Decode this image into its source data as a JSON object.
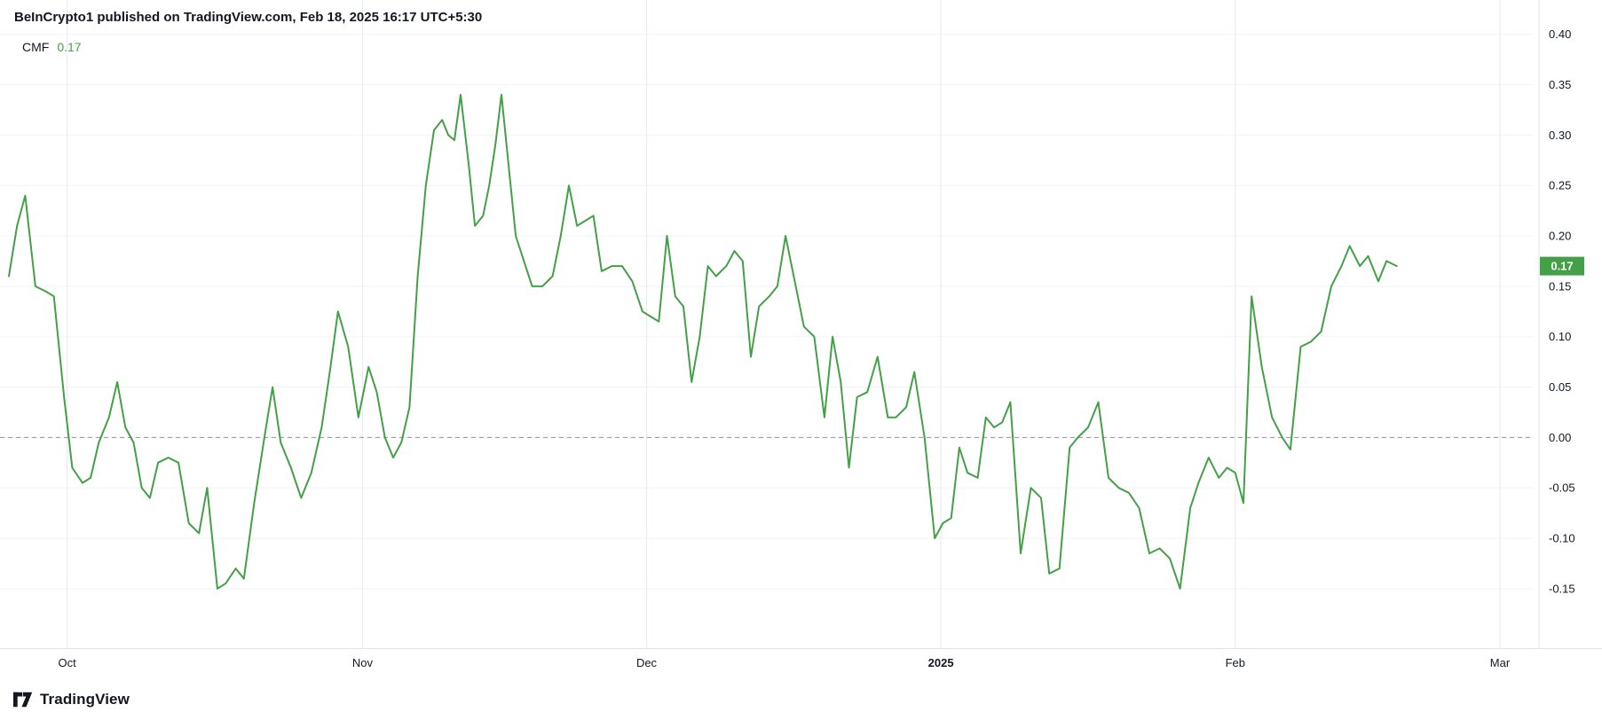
{
  "header": {
    "attribution": "BeInCrypto1 published on TradingView.com, Feb 18, 2025 16:17 UTC+5:30",
    "indicator": {
      "label": "CMF",
      "value": "0.17"
    }
  },
  "footer": {
    "brand": "TradingView"
  },
  "colors": {
    "background": "#ffffff",
    "line": "#43a047",
    "value_text": "#43a047",
    "badge_bg": "#43a047",
    "badge_text": "#ffffff",
    "grid_vertical": "#e8eaf0",
    "grid_horizontal": "#f1f3f8",
    "zero_line": "#8f939e",
    "axis_border": "#e0e3eb",
    "axis_text": "#131722",
    "header_text": "#131722"
  },
  "chart_data": {
    "type": "line",
    "title": "CMF (Chaikin Money Flow)",
    "series_name": "CMF",
    "current_value": 0.17,
    "legend_position": "top-left",
    "grid": true,
    "x_domain": [
      0,
      1492
    ],
    "ylim": [
      -0.209,
      0.434
    ],
    "y_ticks": [
      0.4,
      0.35,
      0.3,
      0.25,
      0.2,
      0.15,
      0.1,
      0.05,
      0.0,
      -0.05,
      -0.1,
      -0.15
    ],
    "y_tick_labels": [
      "0.40",
      "0.35",
      "0.30",
      "0.25",
      "0.20",
      "0.15",
      "0.10",
      "0.05",
      "0.00",
      "-0.05",
      "-0.10",
      "-0.15"
    ],
    "x_ticks": [
      {
        "label": "Oct",
        "x": 57,
        "bold": false
      },
      {
        "label": "Nov",
        "x": 346,
        "bold": false
      },
      {
        "label": "Dec",
        "x": 624,
        "bold": false
      },
      {
        "label": "2025",
        "x": 912,
        "bold": true
      },
      {
        "label": "Feb",
        "x": 1200,
        "bold": false
      },
      {
        "label": "Mar",
        "x": 1459,
        "bold": false
      }
    ],
    "points": [
      [
        0,
        0.16
      ],
      [
        8,
        0.21
      ],
      [
        16,
        0.24
      ],
      [
        26,
        0.15
      ],
      [
        36,
        0.145
      ],
      [
        44,
        0.14
      ],
      [
        54,
        0.04
      ],
      [
        62,
        -0.03
      ],
      [
        72,
        -0.045
      ],
      [
        80,
        -0.04
      ],
      [
        88,
        -0.005
      ],
      [
        98,
        0.02
      ],
      [
        106,
        0.055
      ],
      [
        114,
        0.01
      ],
      [
        122,
        -0.005
      ],
      [
        130,
        -0.05
      ],
      [
        138,
        -0.06
      ],
      [
        146,
        -0.025
      ],
      [
        156,
        -0.02
      ],
      [
        166,
        -0.025
      ],
      [
        176,
        -0.085
      ],
      [
        186,
        -0.095
      ],
      [
        194,
        -0.05
      ],
      [
        204,
        -0.15
      ],
      [
        212,
        -0.145
      ],
      [
        222,
        -0.13
      ],
      [
        230,
        -0.14
      ],
      [
        240,
        -0.065
      ],
      [
        250,
        0.0
      ],
      [
        258,
        0.05
      ],
      [
        266,
        -0.005
      ],
      [
        276,
        -0.03
      ],
      [
        286,
        -0.06
      ],
      [
        296,
        -0.035
      ],
      [
        306,
        0.01
      ],
      [
        314,
        0.065
      ],
      [
        322,
        0.125
      ],
      [
        332,
        0.09
      ],
      [
        342,
        0.02
      ],
      [
        352,
        0.07
      ],
      [
        360,
        0.045
      ],
      [
        368,
        0.0
      ],
      [
        376,
        -0.02
      ],
      [
        384,
        -0.005
      ],
      [
        392,
        0.03
      ],
      [
        400,
        0.16
      ],
      [
        408,
        0.25
      ],
      [
        416,
        0.305
      ],
      [
        424,
        0.315
      ],
      [
        430,
        0.3
      ],
      [
        436,
        0.295
      ],
      [
        442,
        0.34
      ],
      [
        450,
        0.27
      ],
      [
        456,
        0.21
      ],
      [
        464,
        0.22
      ],
      [
        470,
        0.25
      ],
      [
        476,
        0.29
      ],
      [
        482,
        0.34
      ],
      [
        490,
        0.26
      ],
      [
        496,
        0.2
      ],
      [
        504,
        0.175
      ],
      [
        512,
        0.15
      ],
      [
        522,
        0.15
      ],
      [
        532,
        0.16
      ],
      [
        540,
        0.2
      ],
      [
        548,
        0.25
      ],
      [
        556,
        0.21
      ],
      [
        564,
        0.215
      ],
      [
        572,
        0.22
      ],
      [
        580,
        0.165
      ],
      [
        590,
        0.17
      ],
      [
        600,
        0.17
      ],
      [
        610,
        0.155
      ],
      [
        620,
        0.125
      ],
      [
        628,
        0.12
      ],
      [
        636,
        0.115
      ],
      [
        644,
        0.2
      ],
      [
        652,
        0.14
      ],
      [
        660,
        0.13
      ],
      [
        668,
        0.055
      ],
      [
        676,
        0.1
      ],
      [
        684,
        0.17
      ],
      [
        692,
        0.16
      ],
      [
        702,
        0.17
      ],
      [
        710,
        0.185
      ],
      [
        718,
        0.175
      ],
      [
        726,
        0.08
      ],
      [
        734,
        0.13
      ],
      [
        744,
        0.14
      ],
      [
        752,
        0.15
      ],
      [
        760,
        0.2
      ],
      [
        770,
        0.15
      ],
      [
        778,
        0.11
      ],
      [
        788,
        0.1
      ],
      [
        798,
        0.02
      ],
      [
        806,
        0.1
      ],
      [
        814,
        0.055
      ],
      [
        822,
        -0.03
      ],
      [
        830,
        0.04
      ],
      [
        840,
        0.045
      ],
      [
        850,
        0.08
      ],
      [
        860,
        0.02
      ],
      [
        868,
        0.02
      ],
      [
        878,
        0.03
      ],
      [
        886,
        0.065
      ],
      [
        896,
        0.0
      ],
      [
        906,
        -0.1
      ],
      [
        914,
        -0.085
      ],
      [
        922,
        -0.08
      ],
      [
        930,
        -0.01
      ],
      [
        938,
        -0.035
      ],
      [
        948,
        -0.04
      ],
      [
        956,
        0.02
      ],
      [
        964,
        0.01
      ],
      [
        972,
        0.015
      ],
      [
        980,
        0.035
      ],
      [
        990,
        -0.115
      ],
      [
        1000,
        -0.05
      ],
      [
        1010,
        -0.06
      ],
      [
        1018,
        -0.135
      ],
      [
        1028,
        -0.13
      ],
      [
        1038,
        -0.01
      ],
      [
        1046,
        0.0
      ],
      [
        1056,
        0.01
      ],
      [
        1066,
        0.035
      ],
      [
        1076,
        -0.04
      ],
      [
        1086,
        -0.05
      ],
      [
        1096,
        -0.055
      ],
      [
        1106,
        -0.07
      ],
      [
        1116,
        -0.115
      ],
      [
        1126,
        -0.11
      ],
      [
        1136,
        -0.12
      ],
      [
        1146,
        -0.15
      ],
      [
        1156,
        -0.07
      ],
      [
        1164,
        -0.045
      ],
      [
        1174,
        -0.02
      ],
      [
        1184,
        -0.04
      ],
      [
        1192,
        -0.03
      ],
      [
        1200,
        -0.035
      ],
      [
        1208,
        -0.065
      ],
      [
        1216,
        0.14
      ],
      [
        1226,
        0.07
      ],
      [
        1236,
        0.02
      ],
      [
        1246,
        0.0
      ],
      [
        1254,
        -0.012
      ],
      [
        1264,
        0.09
      ],
      [
        1274,
        0.095
      ],
      [
        1284,
        0.105
      ],
      [
        1294,
        0.15
      ],
      [
        1304,
        0.17
      ],
      [
        1312,
        0.19
      ],
      [
        1322,
        0.17
      ],
      [
        1330,
        0.18
      ],
      [
        1340,
        0.155
      ],
      [
        1348,
        0.175
      ],
      [
        1358,
        0.17
      ]
    ]
  }
}
